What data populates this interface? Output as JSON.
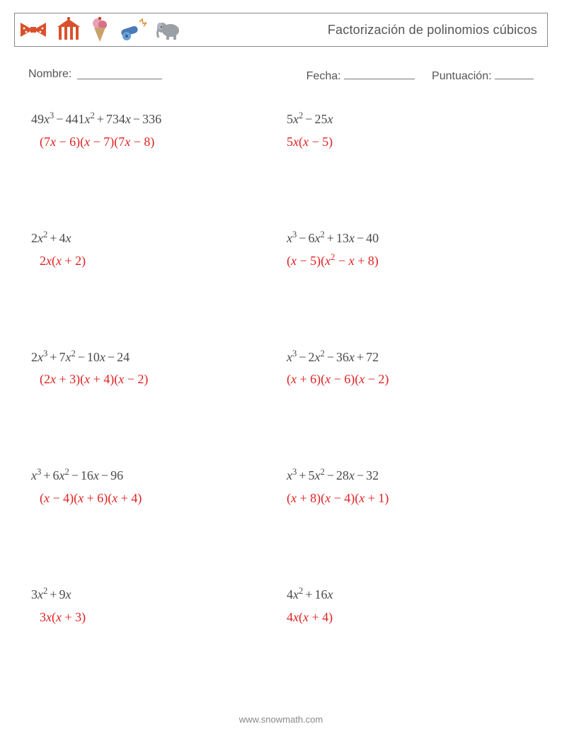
{
  "colors": {
    "text": "#4a4a4a",
    "answer": "#e02020",
    "border": "#888888",
    "background": "#ffffff",
    "icon_red": "#d9512c",
    "icon_blue": "#4a7ab8",
    "icon_pink": "#e8a0b8",
    "icon_brown": "#9e7b52",
    "icon_gray": "#9aa0a6"
  },
  "header": {
    "title": "Factorización de polinomios cúbicos"
  },
  "info": {
    "name_label": "Nombre:",
    "date_label": "Fecha:",
    "score_label": "Puntuación:",
    "blank_widths": {
      "name": 120,
      "date": 100,
      "score": 55
    }
  },
  "variable": "x",
  "problems": [
    {
      "poly": [
        {
          "c": "49",
          "e": 3
        },
        {
          "op": "−",
          "c": "441",
          "e": 2
        },
        {
          "op": "+",
          "c": "734",
          "e": 1
        },
        {
          "op": "−",
          "c": "336",
          "e": 0
        }
      ],
      "answer": [
        {
          "t": "(7"
        },
        {
          "v": true
        },
        {
          "t": " − 6)("
        },
        {
          "v": true
        },
        {
          "t": " − 7)(7"
        },
        {
          "v": true
        },
        {
          "t": " − 8)"
        }
      ]
    },
    {
      "poly": [
        {
          "c": "5",
          "e": 2
        },
        {
          "op": "−",
          "c": "25",
          "e": 1
        }
      ],
      "answer": [
        {
          "t": "5"
        },
        {
          "v": true
        },
        {
          "t": "("
        },
        {
          "v": true
        },
        {
          "t": " − 5)"
        }
      ]
    },
    {
      "poly": [
        {
          "c": "2",
          "e": 2
        },
        {
          "op": "+",
          "c": "4",
          "e": 1
        }
      ],
      "answer": [
        {
          "t": "2"
        },
        {
          "v": true
        },
        {
          "t": "("
        },
        {
          "v": true
        },
        {
          "t": " + 2)"
        }
      ]
    },
    {
      "poly": [
        {
          "c": "",
          "e": 3
        },
        {
          "op": "−",
          "c": "6",
          "e": 2
        },
        {
          "op": "+",
          "c": "13",
          "e": 1
        },
        {
          "op": "−",
          "c": "40",
          "e": 0
        }
      ],
      "answer": [
        {
          "t": "("
        },
        {
          "v": true
        },
        {
          "t": " − 5)("
        },
        {
          "v": true,
          "e": 2
        },
        {
          "t": " − "
        },
        {
          "v": true
        },
        {
          "t": " + 8)"
        }
      ]
    },
    {
      "poly": [
        {
          "c": "2",
          "e": 3
        },
        {
          "op": "+",
          "c": "7",
          "e": 2
        },
        {
          "op": "−",
          "c": "10",
          "e": 1
        },
        {
          "op": "−",
          "c": "24",
          "e": 0
        }
      ],
      "answer": [
        {
          "t": "(2"
        },
        {
          "v": true
        },
        {
          "t": " + 3)("
        },
        {
          "v": true
        },
        {
          "t": " + 4)("
        },
        {
          "v": true
        },
        {
          "t": " − 2)"
        }
      ]
    },
    {
      "poly": [
        {
          "c": "",
          "e": 3
        },
        {
          "op": "−",
          "c": "2",
          "e": 2
        },
        {
          "op": "−",
          "c": "36",
          "e": 1
        },
        {
          "op": "+",
          "c": "72",
          "e": 0
        }
      ],
      "answer": [
        {
          "t": "("
        },
        {
          "v": true
        },
        {
          "t": " + 6)("
        },
        {
          "v": true
        },
        {
          "t": " − 6)("
        },
        {
          "v": true
        },
        {
          "t": " − 2)"
        }
      ]
    },
    {
      "poly": [
        {
          "c": "",
          "e": 3
        },
        {
          "op": "+",
          "c": "6",
          "e": 2
        },
        {
          "op": "−",
          "c": "16",
          "e": 1
        },
        {
          "op": "−",
          "c": "96",
          "e": 0
        }
      ],
      "answer": [
        {
          "t": "("
        },
        {
          "v": true
        },
        {
          "t": " − 4)("
        },
        {
          "v": true
        },
        {
          "t": " + 6)("
        },
        {
          "v": true
        },
        {
          "t": " + 4)"
        }
      ]
    },
    {
      "poly": [
        {
          "c": "",
          "e": 3
        },
        {
          "op": "+",
          "c": "5",
          "e": 2
        },
        {
          "op": "−",
          "c": "28",
          "e": 1
        },
        {
          "op": "−",
          "c": "32",
          "e": 0
        }
      ],
      "answer": [
        {
          "t": "("
        },
        {
          "v": true
        },
        {
          "t": " + 8)("
        },
        {
          "v": true
        },
        {
          "t": " − 4)("
        },
        {
          "v": true
        },
        {
          "t": " + 1)"
        }
      ]
    },
    {
      "poly": [
        {
          "c": "3",
          "e": 2
        },
        {
          "op": "+",
          "c": "9",
          "e": 1
        }
      ],
      "answer": [
        {
          "t": "3"
        },
        {
          "v": true
        },
        {
          "t": "("
        },
        {
          "v": true
        },
        {
          "t": " + 3)"
        }
      ]
    },
    {
      "poly": [
        {
          "c": "4",
          "e": 2
        },
        {
          "op": "+",
          "c": "16",
          "e": 1
        }
      ],
      "answer": [
        {
          "t": "4"
        },
        {
          "v": true
        },
        {
          "t": "("
        },
        {
          "v": true
        },
        {
          "t": " + 4)"
        }
      ]
    }
  ],
  "footer": "www.snowmath.com"
}
